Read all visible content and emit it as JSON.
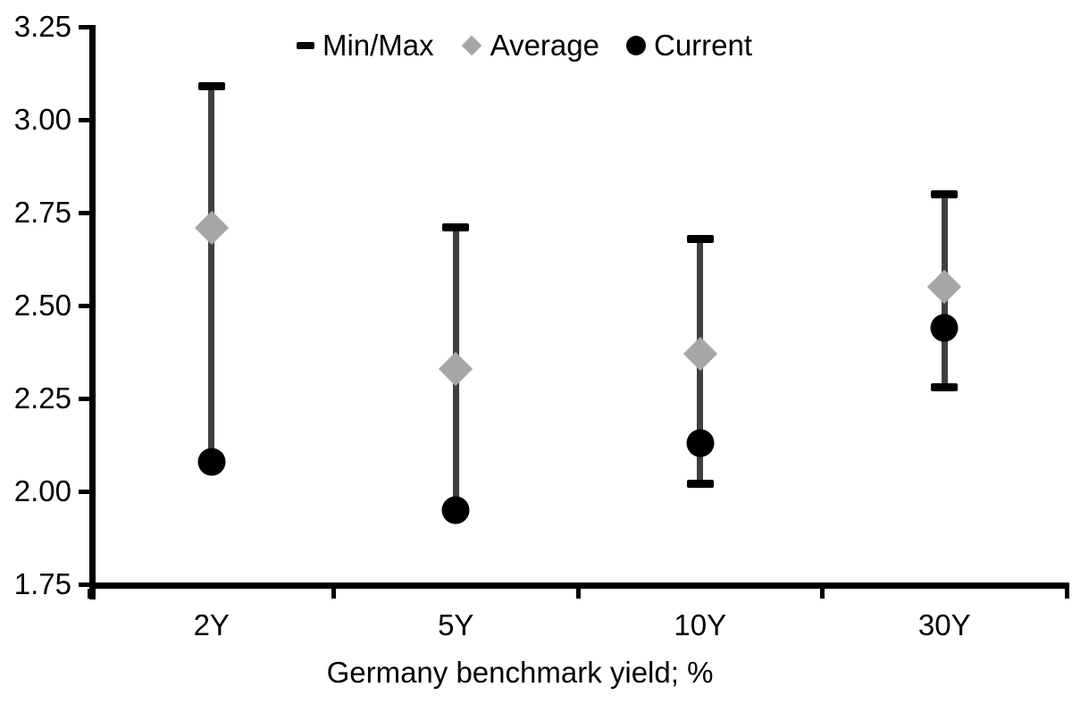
{
  "chart_data": {
    "type": "scatter",
    "subtype": "min-max-range-with-markers",
    "title": "",
    "xlabel": "Germany benchmark yield; %",
    "ylabel": "",
    "ylim": [
      1.75,
      3.25
    ],
    "ytick_step": 0.25,
    "ytick_labels": [
      "3.25",
      "3.00",
      "2.75",
      "2.50",
      "2.25",
      "2.00",
      "1.75"
    ],
    "categories": [
      "2Y",
      "5Y",
      "10Y",
      "30Y"
    ],
    "series": [
      {
        "name": "Min",
        "values": [
          2.08,
          1.95,
          2.02,
          2.28
        ]
      },
      {
        "name": "Max",
        "values": [
          3.09,
          2.71,
          2.68,
          2.8
        ]
      },
      {
        "name": "Average",
        "values": [
          2.71,
          2.33,
          2.37,
          2.55
        ]
      },
      {
        "name": "Current",
        "values": [
          2.08,
          1.95,
          2.13,
          2.44
        ]
      }
    ],
    "legend": [
      {
        "name": "Min/Max",
        "marker": "dash",
        "color": "#000000"
      },
      {
        "name": "Average",
        "marker": "diamond",
        "color": "#a6a6a6"
      },
      {
        "name": "Current",
        "marker": "circle",
        "color": "#000000"
      }
    ],
    "legend_position": "top-center",
    "grid": false,
    "notes": "Current equals the period minimum for 2Y and 5Y (dot sits at bottom of range bar)."
  },
  "colors": {
    "background": "#ffffff",
    "text": "#000000",
    "axis": "#000000",
    "range_line": "#404040",
    "min_max_cap": "#000000",
    "average_marker": "#a6a6a6",
    "current_marker": "#000000"
  }
}
